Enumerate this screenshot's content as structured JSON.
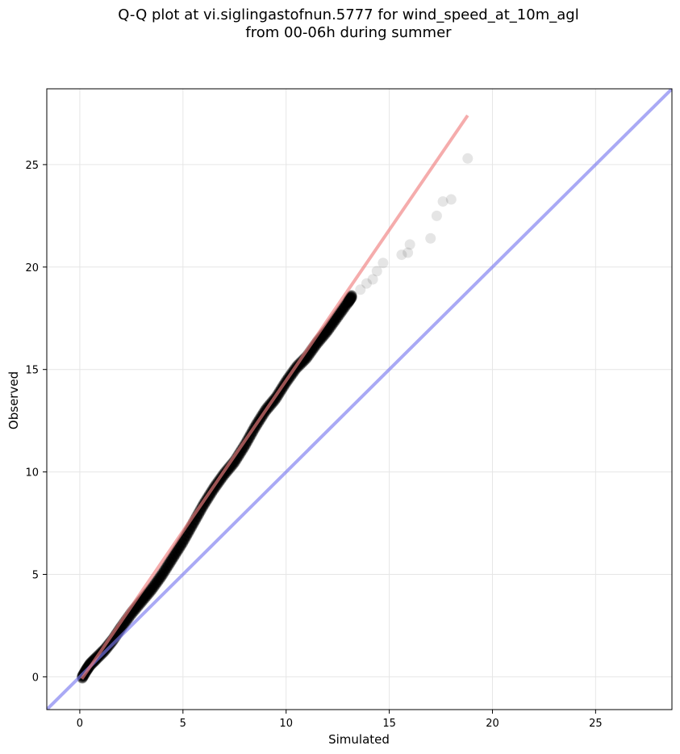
{
  "chart_data": {
    "type": "scatter",
    "title": "Q-Q plot at vi.siglingastofnun.5777 for wind_speed_at_10m_agl\nfrom 00-06h during summer",
    "xlabel": "Simulated",
    "ylabel": "Observed",
    "xlim": [
      -1.6,
      28.7
    ],
    "ylim": [
      -1.6,
      28.7
    ],
    "xticks": [
      0,
      5,
      10,
      15,
      20,
      25
    ],
    "yticks": [
      0,
      5,
      10,
      15,
      20,
      25
    ],
    "grid": true,
    "colors": {
      "points": "#000000",
      "fit_line": "#f08080",
      "identity_line": "#7b7bef"
    },
    "quantile_curve": [
      [
        0.1,
        -0.05
      ],
      [
        0.3,
        0.3
      ],
      [
        0.5,
        0.6
      ],
      [
        0.8,
        0.9
      ],
      [
        1.2,
        1.3
      ],
      [
        1.6,
        1.8
      ],
      [
        2.0,
        2.4
      ],
      [
        2.5,
        3.1
      ],
      [
        3.0,
        3.7
      ],
      [
        3.5,
        4.3
      ],
      [
        4.0,
        5.0
      ],
      [
        4.5,
        5.8
      ],
      [
        5.0,
        6.6
      ],
      [
        5.5,
        7.5
      ],
      [
        6.0,
        8.4
      ],
      [
        6.5,
        9.2
      ],
      [
        7.0,
        9.9
      ],
      [
        7.5,
        10.5
      ],
      [
        8.0,
        11.3
      ],
      [
        8.5,
        12.2
      ],
      [
        9.0,
        13.0
      ],
      [
        9.5,
        13.6
      ],
      [
        10.0,
        14.4
      ],
      [
        10.5,
        15.1
      ],
      [
        11.0,
        15.6
      ],
      [
        11.5,
        16.3
      ],
      [
        12.0,
        16.9
      ],
      [
        12.5,
        17.6
      ],
      [
        13.0,
        18.3
      ],
      [
        13.2,
        18.6
      ]
    ],
    "sparse_points": [
      [
        13.6,
        18.9
      ],
      [
        13.9,
        19.2
      ],
      [
        14.2,
        19.4
      ],
      [
        14.4,
        19.8
      ],
      [
        14.7,
        20.2
      ],
      [
        15.6,
        20.6
      ],
      [
        15.9,
        20.7
      ],
      [
        16.0,
        21.1
      ],
      [
        17.0,
        21.4
      ],
      [
        17.3,
        22.5
      ],
      [
        17.6,
        23.2
      ],
      [
        18.0,
        23.3
      ],
      [
        18.8,
        25.3
      ]
    ],
    "fit_line": [
      [
        0.1,
        -0.1
      ],
      [
        18.8,
        27.4
      ]
    ],
    "identity_line": [
      [
        -1.6,
        -1.6
      ],
      [
        28.7,
        28.7
      ]
    ]
  }
}
